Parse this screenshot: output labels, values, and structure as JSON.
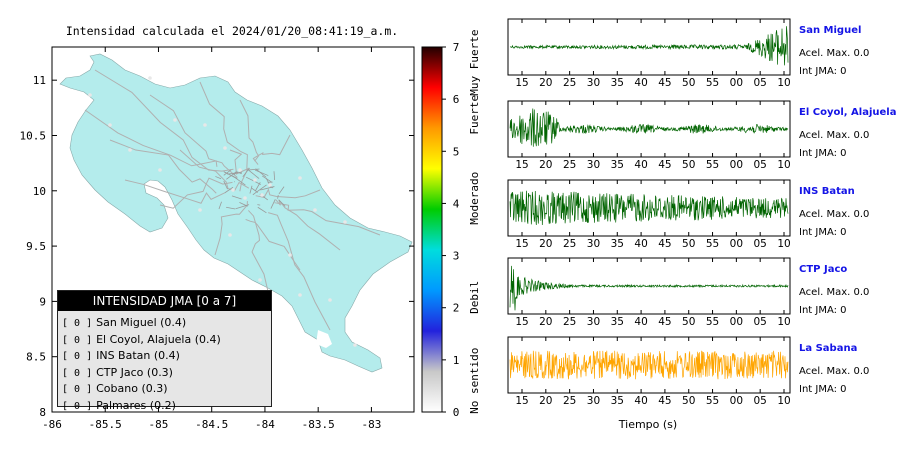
{
  "map": {
    "title": "Intensidad calculada el 2024/01/20_08:41:19_a.m.",
    "x_ticks": [
      "-86",
      "-85.5",
      "-85",
      "-84.5",
      "-84",
      "-83.5",
      "-83"
    ],
    "y_ticks": [
      "8",
      "8.5",
      "9",
      "9.5",
      "10",
      "10.5",
      "11"
    ],
    "xlim": [
      -86,
      -82.6
    ],
    "ylim": [
      8,
      11.3
    ],
    "land_color": "#b4ecec",
    "road_color": "#b0b0b0"
  },
  "legend": {
    "title": "INTENSIDAD JMA [0 a 7]",
    "items": [
      {
        "value": "[ 0 ]",
        "name": "San Miguel (0.4)"
      },
      {
        "value": "[ 0 ]",
        "name": "El Coyol, Alajuela (0.4)"
      },
      {
        "value": "[ 0 ]",
        "name": "INS Batan (0.4)"
      },
      {
        "value": "[ 0 ]",
        "name": "CTP Jaco (0.3)"
      },
      {
        "value": "[ 0 ]",
        "name": "Cobano (0.3)"
      },
      {
        "value": "[ 0 ]",
        "name": "Palmares (0.2)"
      }
    ]
  },
  "colorbar": {
    "ticks": [
      "0",
      "1",
      "2",
      "3",
      "4",
      "5",
      "6",
      "7"
    ],
    "range": [
      0,
      7
    ],
    "labels": [
      {
        "text": "No sentido",
        "from": 0,
        "to": 1.2
      },
      {
        "text": "Debil",
        "from": 1.2,
        "to": 3.2
      },
      {
        "text": "Moderado",
        "from": 3.2,
        "to": 5.0
      },
      {
        "text": "Fuerte",
        "from": 5.0,
        "to": 6.4
      },
      {
        "text": "Muy Fuerte",
        "from": 6.4,
        "to": 7
      }
    ],
    "stops": [
      "#ffffff",
      "#c8c8c8",
      "#2222dd",
      "#0099ff",
      "#00dddd",
      "#00cc00",
      "#ffff00",
      "#ff9900",
      "#ff0000",
      "#220000"
    ]
  },
  "waveforms": {
    "x_ticks": [
      "15",
      "20",
      "25",
      "30",
      "35",
      "40",
      "45",
      "50",
      "55",
      "00",
      "05",
      "10"
    ],
    "x_label": "Tiempo (s)",
    "amax_label": "Acel. Max. 0.0",
    "int_label": "Int JMA: 0",
    "stations": [
      {
        "name": "San Miguel",
        "color": "#006400",
        "profile": "growing"
      },
      {
        "name": "El Coyol, Alajuela",
        "color": "#006400",
        "profile": "early_burst"
      },
      {
        "name": "INS Batan",
        "color": "#006400",
        "profile": "decaying"
      },
      {
        "name": "CTP Jaco",
        "color": "#006400",
        "profile": "spike"
      },
      {
        "name": "La Sabana",
        "color": "#ffa500",
        "profile": "constant"
      }
    ]
  },
  "chart_data": [
    {
      "type": "scatter",
      "title": "Intensidad calculada el 2024/01/20_08:41:19_a.m.",
      "xlim": [
        -86,
        -82.6
      ],
      "ylim": [
        8,
        11.3
      ],
      "legend": "INTENSIDAD JMA [0 a 7]",
      "series": [
        {
          "name": "San Miguel (0.4)",
          "value": 0
        },
        {
          "name": "El Coyol, Alajuela (0.4)",
          "value": 0
        },
        {
          "name": "INS Batan (0.4)",
          "value": 0
        },
        {
          "name": "CTP Jaco (0.3)",
          "value": 0
        },
        {
          "name": "Cobano (0.3)",
          "value": 0
        },
        {
          "name": "Palmares (0.2)",
          "value": 0
        }
      ]
    },
    {
      "type": "line",
      "xlabel": "Tiempo (s)",
      "x_ticks": [
        "15",
        "20",
        "25",
        "30",
        "35",
        "40",
        "45",
        "50",
        "55",
        "00",
        "05",
        "10"
      ],
      "series": [
        {
          "name": "San Miguel",
          "max_accel": 0.0,
          "int_jma": 0
        },
        {
          "name": "El Coyol, Alajuela",
          "max_accel": 0.0,
          "int_jma": 0
        },
        {
          "name": "INS Batan",
          "max_accel": 0.0,
          "int_jma": 0
        },
        {
          "name": "CTP Jaco",
          "max_accel": 0.0,
          "int_jma": 0
        },
        {
          "name": "La Sabana",
          "max_accel": 0.0,
          "int_jma": 0
        }
      ]
    }
  ]
}
